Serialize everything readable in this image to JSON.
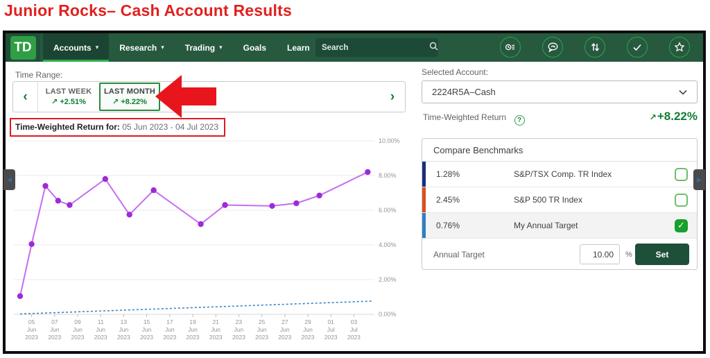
{
  "page_title": "Junior Rocks– Cash Account Results",
  "navbar": {
    "logo": "TD",
    "items": [
      {
        "label": "Accounts",
        "has_dropdown": true,
        "active": true
      },
      {
        "label": "Research",
        "has_dropdown": true,
        "active": false
      },
      {
        "label": "Trading",
        "has_dropdown": true,
        "active": false
      },
      {
        "label": "Goals",
        "has_dropdown": false,
        "active": false
      },
      {
        "label": "Learn",
        "has_dropdown": false,
        "active": false
      }
    ],
    "search_placeholder": "Search",
    "icon_names": [
      "watchlist-clock-icon",
      "chat-bubble-icon",
      "transfer-arrows-icon",
      "check-circle-icon",
      "star-icon"
    ]
  },
  "time_range": {
    "label": "Time Range:",
    "options": [
      {
        "label": "LAST WEEK",
        "value": "+2.51%",
        "selected": false
      },
      {
        "label": "LAST MONTH",
        "value": "+8.22%",
        "selected": true
      }
    ],
    "up_arrow": "↗"
  },
  "return_banner": {
    "prefix": "Time-Weighted Return for:",
    "range": " 05 Jun 2023 - 04 Jul 2023"
  },
  "account_panel": {
    "selected_account_label": "Selected Account:",
    "account": "2224R5A–Cash",
    "twr_label": "Time-Weighted Return",
    "info_glyph": "?",
    "up_arrow": "↗",
    "twr_value": "+8.22%"
  },
  "benchmarks": {
    "title": "Compare Benchmarks",
    "rows": [
      {
        "value": "1.28%",
        "name": "S&P/TSX Comp. TR Index",
        "checked": false,
        "color": "#1b2d7d"
      },
      {
        "value": "2.45%",
        "name": "S&P 500 TR Index",
        "checked": false,
        "color": "#d94f1e"
      },
      {
        "value": "0.76%",
        "name": "My Annual Target",
        "checked": true,
        "color": "#2e80c2"
      }
    ],
    "annual_target_label": "Annual Target",
    "annual_target_value": "10.00",
    "percent_sign": "%",
    "set_button": "Set"
  },
  "chart_data": {
    "type": "line",
    "title": "Time-weighted return, last month (05 Jun 2023 - 04 Jul 2023)",
    "ylim": [
      0,
      10
    ],
    "grid": true,
    "y_ticks": [
      {
        "value": 10,
        "label": "10.00%"
      },
      {
        "value": 8,
        "label": "8.00%"
      },
      {
        "value": 6,
        "label": "6.00%"
      },
      {
        "value": 4,
        "label": "4.00%"
      },
      {
        "value": 2,
        "label": "2.00%"
      },
      {
        "value": 0,
        "label": "0.00%"
      }
    ],
    "x_unit": "days since 04 Jun 2023",
    "x_ticks": [
      {
        "d": 1,
        "day": "05",
        "month": "Jun",
        "year": "2023"
      },
      {
        "d": 3,
        "day": "07",
        "month": "Jun",
        "year": "2023"
      },
      {
        "d": 5,
        "day": "09",
        "month": "Jun",
        "year": "2023"
      },
      {
        "d": 7,
        "day": "11",
        "month": "Jun",
        "year": "2023"
      },
      {
        "d": 9,
        "day": "13",
        "month": "Jun",
        "year": "2023"
      },
      {
        "d": 11,
        "day": "15",
        "month": "Jun",
        "year": "2023"
      },
      {
        "d": 13,
        "day": "17",
        "month": "Jun",
        "year": "2023"
      },
      {
        "d": 15,
        "day": "19",
        "month": "Jun",
        "year": "2023"
      },
      {
        "d": 17,
        "day": "21",
        "month": "Jun",
        "year": "2023"
      },
      {
        "d": 19,
        "day": "23",
        "month": "Jun",
        "year": "2023"
      },
      {
        "d": 21,
        "day": "25",
        "month": "Jun",
        "year": "2023"
      },
      {
        "d": 23,
        "day": "27",
        "month": "Jun",
        "year": "2023"
      },
      {
        "d": 25,
        "day": "29",
        "month": "Jun",
        "year": "2023"
      },
      {
        "d": 27,
        "day": "01",
        "month": "Jul",
        "year": "2023"
      },
      {
        "d": 29,
        "day": "03",
        "month": "Jul",
        "year": "2023"
      }
    ],
    "series": [
      {
        "name": "Account time-weighted return",
        "type": "line",
        "line_color": "#c36ef2",
        "point_color": "#9d2bd6",
        "points": [
          [
            0,
            1.05
          ],
          [
            1,
            4.05
          ],
          [
            2.2,
            7.4
          ],
          [
            3.3,
            6.55
          ],
          [
            4.3,
            6.3
          ],
          [
            7.4,
            7.8
          ],
          [
            9.5,
            5.75
          ],
          [
            11.6,
            7.15
          ],
          [
            15.7,
            5.2
          ],
          [
            17.8,
            6.3
          ],
          [
            21.9,
            6.25
          ],
          [
            24,
            6.4
          ],
          [
            26,
            6.85
          ],
          [
            30.2,
            8.2
          ]
        ]
      },
      {
        "name": "My Annual Target",
        "type": "line",
        "style": "dashed",
        "line_color": "#3585c6",
        "points": [
          [
            0,
            0.02
          ],
          [
            30.6,
            0.76
          ]
        ]
      }
    ]
  }
}
